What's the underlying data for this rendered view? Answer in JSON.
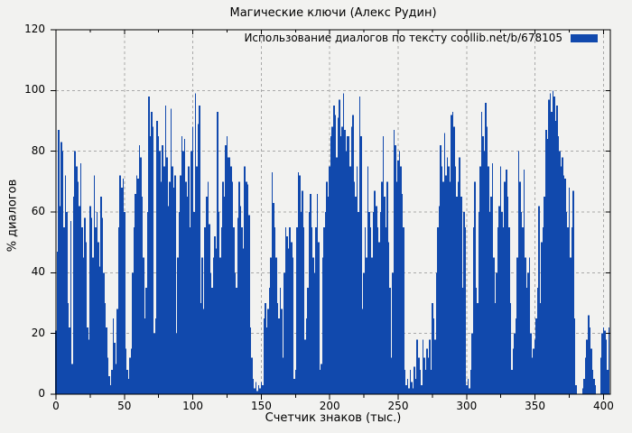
{
  "figure": {
    "background": "#f2f2f0",
    "grid_color": "#a9a9a9",
    "border_color": "#000000"
  },
  "legend": {
    "label": "Использование диалогов по тексту coollib.net/b/678105",
    "swatch_color": "#1149ad"
  },
  "chart_data": {
    "type": "bar",
    "title": "Магические ключи (Алекс Рудин)",
    "xlabel": "Счетчик знаков (тыс.)",
    "ylabel": "% диалогов",
    "series_label": "Использование диалогов по тексту coollib.net/b/678105",
    "bar_color": "#1149ad",
    "grid": true,
    "legend_position": "top-right",
    "xlim": [
      0,
      405
    ],
    "ylim": [
      0,
      120
    ],
    "x_ticks": [
      0,
      50,
      100,
      150,
      200,
      250,
      300,
      350,
      400
    ],
    "x_minor_step": 25,
    "y_ticks": [
      0,
      20,
      40,
      60,
      80,
      100,
      120
    ],
    "x_start": 0,
    "x_step": 1,
    "values": [
      21,
      47,
      87,
      62,
      83,
      80,
      55,
      72,
      60,
      30,
      22,
      57,
      10,
      65,
      80,
      75,
      70,
      62,
      76,
      55,
      45,
      58,
      50,
      22,
      18,
      62,
      58,
      45,
      72,
      55,
      60,
      50,
      42,
      65,
      58,
      40,
      30,
      22,
      12,
      6,
      3,
      8,
      25,
      17,
      10,
      28,
      55,
      72,
      68,
      71,
      60,
      15,
      8,
      5,
      12,
      15,
      40,
      55,
      66,
      72,
      71,
      82,
      78,
      65,
      45,
      25,
      35,
      60,
      98,
      85,
      93,
      88,
      20,
      25,
      90,
      85,
      80,
      70,
      82,
      75,
      95,
      78,
      62,
      70,
      94,
      75,
      68,
      72,
      20,
      45,
      60,
      72,
      85,
      80,
      84,
      70,
      65,
      75,
      55,
      80,
      88,
      60,
      99,
      75,
      89,
      95,
      30,
      45,
      28,
      55,
      65,
      70,
      56,
      40,
      35,
      45,
      52,
      48,
      93,
      60,
      45,
      55,
      70,
      65,
      82,
      85,
      78,
      78,
      75,
      70,
      55,
      40,
      35,
      58,
      70,
      62,
      55,
      48,
      75,
      70,
      69,
      59,
      22,
      12,
      5,
      2,
      4,
      1,
      3,
      2,
      4,
      3,
      25,
      30,
      22,
      28,
      35,
      45,
      73,
      63,
      55,
      45,
      30,
      25,
      35,
      28,
      12,
      40,
      55,
      52,
      48,
      55,
      50,
      45,
      5,
      8,
      55,
      73,
      72,
      60,
      67,
      55,
      18,
      25,
      35,
      60,
      66,
      55,
      45,
      40,
      55,
      66,
      50,
      8,
      10,
      45,
      55,
      60,
      70,
      65,
      75,
      85,
      88,
      95,
      92,
      78,
      91,
      97,
      85,
      88,
      99,
      87,
      80,
      85,
      85,
      75,
      88,
      92,
      70,
      65,
      75,
      60,
      98,
      85,
      28,
      40,
      55,
      45,
      75,
      60,
      55,
      45,
      60,
      67,
      62,
      55,
      50,
      60,
      70,
      85,
      65,
      55,
      70,
      50,
      35,
      12,
      40,
      87,
      82,
      70,
      77,
      80,
      75,
      66,
      55,
      8,
      3,
      5,
      2,
      8,
      4,
      2,
      9,
      5,
      18,
      12,
      8,
      3,
      18,
      12,
      8,
      15,
      12,
      18,
      8,
      30,
      25,
      18,
      40,
      55,
      62,
      82,
      75,
      70,
      86,
      72,
      78,
      75,
      70,
      92,
      93,
      88,
      75,
      65,
      70,
      78,
      65,
      35,
      60,
      55,
      3,
      5,
      2,
      8,
      20,
      55,
      70,
      35,
      30,
      60,
      75,
      93,
      85,
      80,
      96,
      88,
      75,
      60,
      65,
      76,
      45,
      30,
      40,
      55,
      62,
      75,
      60,
      55,
      70,
      74,
      65,
      55,
      30,
      8,
      15,
      20,
      25,
      45,
      80,
      70,
      60,
      55,
      74,
      45,
      35,
      40,
      45,
      20,
      12,
      15,
      18,
      25,
      35,
      62,
      30,
      50,
      55,
      65,
      87,
      84,
      97,
      99,
      93,
      100,
      98,
      90,
      95,
      85,
      80,
      75,
      78,
      72,
      71,
      60,
      55,
      68,
      45,
      55,
      67,
      25,
      3,
      0,
      0,
      0,
      0,
      2,
      5,
      12,
      18,
      26,
      22,
      15,
      8,
      5,
      3,
      0,
      0,
      0,
      12,
      20,
      22,
      21,
      18,
      8,
      22,
      0
    ]
  }
}
